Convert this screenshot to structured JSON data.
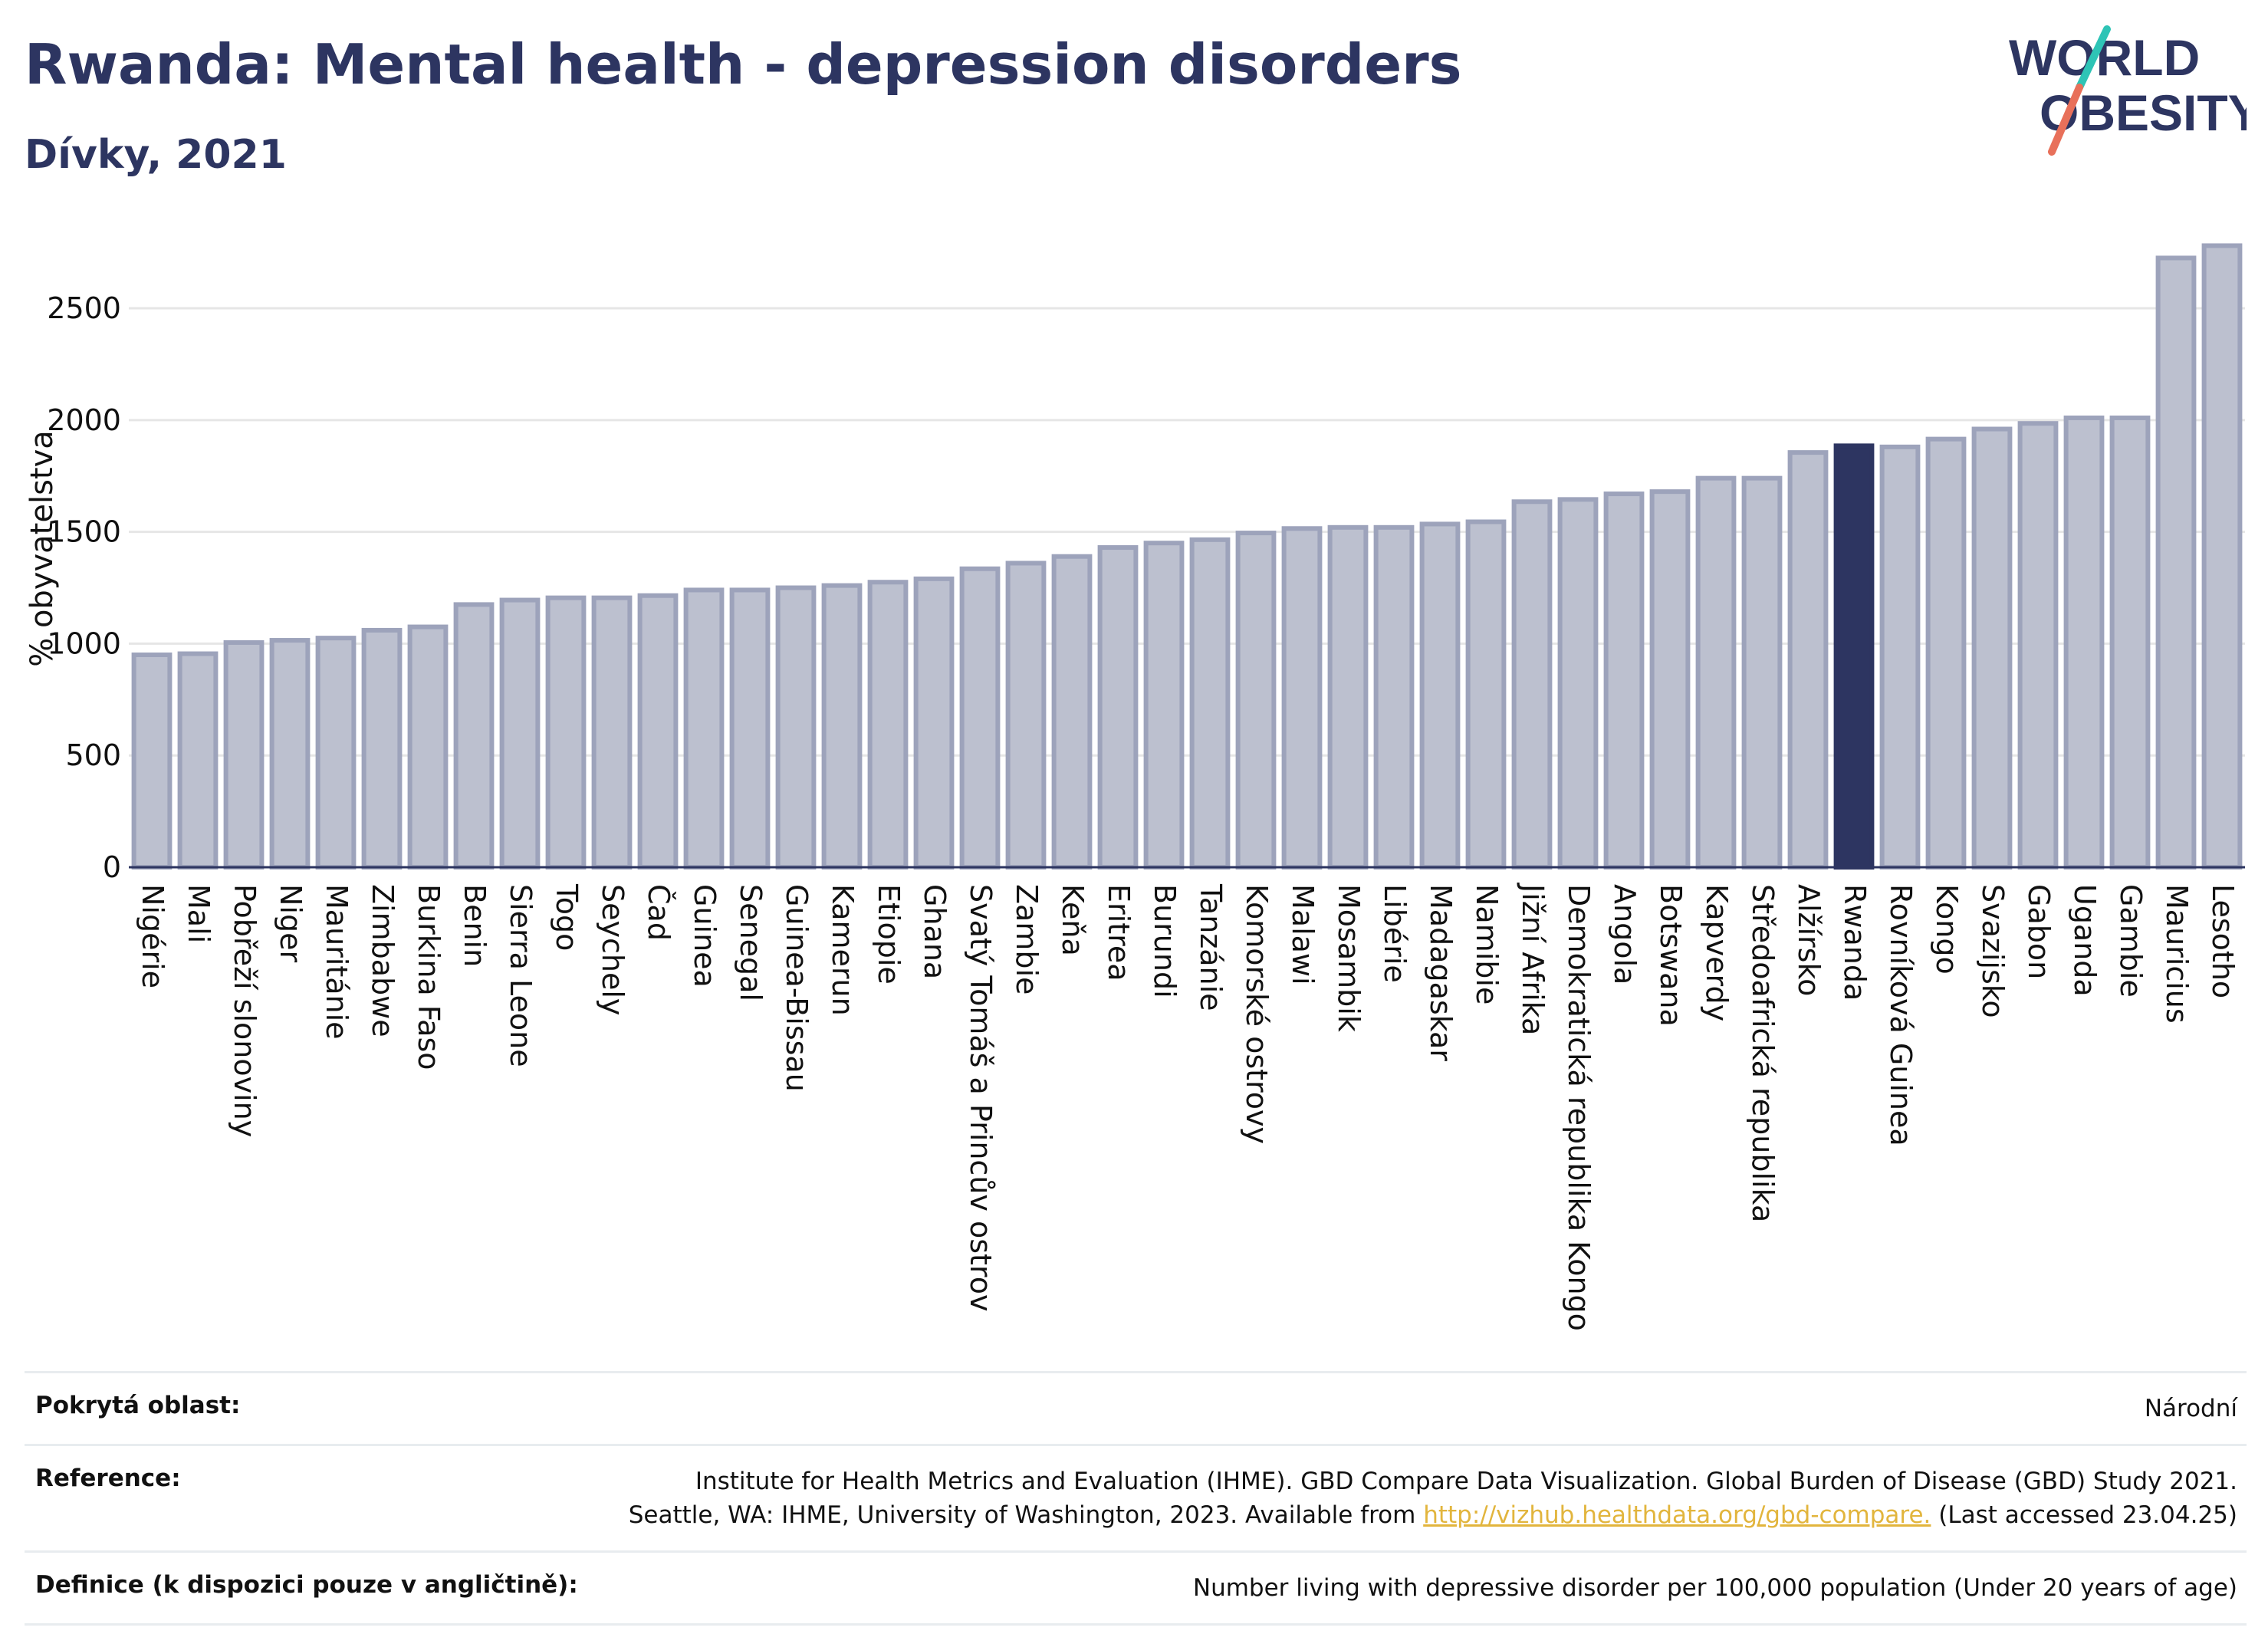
{
  "header": {
    "title": "Rwanda: Mental health - depression disorders",
    "subtitle": "Dívky, 2021"
  },
  "logo": {
    "line1": "WORLD",
    "line2": "OBESITY"
  },
  "colors": {
    "bar": "#bcc0cf",
    "bar_edge": "#9da3bb",
    "highlight": "#2d3561",
    "text": "#2d3561",
    "grid": "#e6e6e6"
  },
  "chart_data": {
    "type": "bar",
    "ylabel": "% obyvatelstva",
    "ylim": [
      0,
      2850
    ],
    "yticks": [
      0,
      500,
      1000,
      1500,
      2000,
      2500
    ],
    "grid": true,
    "highlight": "Rwanda",
    "categories": [
      "Nigérie",
      "Mali",
      "Pobřeží slonoviny",
      "Niger",
      "Mauritánie",
      "Zimbabwe",
      "Burkina Faso",
      "Benin",
      "Sierra Leone",
      "Togo",
      "Seychely",
      "Čad",
      "Guinea",
      "Senegal",
      "Guinea-Bissau",
      "Kamerun",
      "Etiopie",
      "Ghana",
      "Svatý Tomáš a Princův ostrov",
      "Zambie",
      "Keňa",
      "Eritrea",
      "Burundi",
      "Tanzánie",
      "Komorské ostrovy",
      "Malawi",
      "Mosambik",
      "Libérie",
      "Madagaskar",
      "Namibie",
      "Jižní Afrika",
      "Demokratická republika Kongo",
      "Angola",
      "Botswana",
      "Kapverdy",
      "Středoafrická republika",
      "Alžírsko",
      "Rwanda",
      "Rovníková Guinea",
      "Kongo",
      "Svazijsko",
      "Gabon",
      "Uganda",
      "Gambie",
      "Mauricius",
      "Lesotho"
    ],
    "values": [
      950,
      955,
      1005,
      1015,
      1025,
      1060,
      1075,
      1175,
      1195,
      1205,
      1205,
      1215,
      1240,
      1240,
      1250,
      1260,
      1275,
      1290,
      1335,
      1360,
      1390,
      1430,
      1450,
      1465,
      1495,
      1515,
      1520,
      1520,
      1535,
      1545,
      1635,
      1645,
      1670,
      1680,
      1740,
      1740,
      1855,
      1885,
      1880,
      1915,
      1960,
      1985,
      2010,
      2010,
      2725,
      2780
    ]
  },
  "info": {
    "rows": [
      {
        "key": "Pokrytá oblast:",
        "value": "Národní"
      },
      {
        "key": "Reference:",
        "line1": "Institute for Health Metrics and Evaluation (IHME). GBD Compare Data Visualization. Global Burden of Disease (GBD) Study 2021.",
        "line2_pre": "Seattle, WA: IHME, University of Washington, 2023. Available from ",
        "link": "http://vizhub.healthdata.org/gbd-compare.",
        "line2_post": " (Last accessed 23.04.25)"
      },
      {
        "key": "Definice (k dispozici pouze v angličtině):",
        "value": "Number living with depressive disorder per 100,000 population (Under 20 years of age)"
      }
    ]
  }
}
